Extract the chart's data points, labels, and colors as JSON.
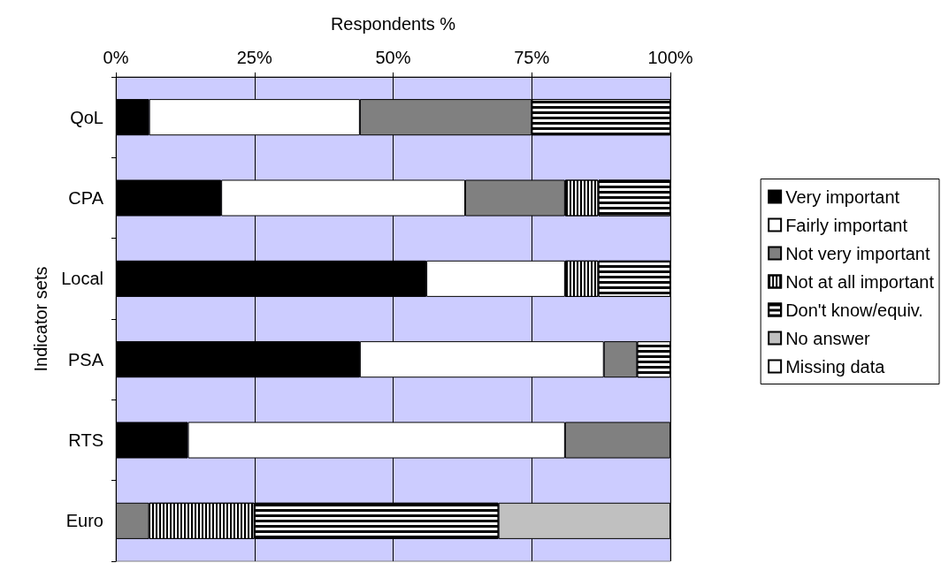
{
  "chart_data": {
    "type": "bar",
    "orientation": "horizontal",
    "stacked": true,
    "xlabel": "Respondents %",
    "ylabel": "Indicator sets",
    "categories": [
      "QoL",
      "CPA",
      "Local",
      "PSA",
      "RTS",
      "Euro"
    ],
    "xlim": [
      0,
      100
    ],
    "xticks": [
      {
        "value": 0,
        "label": "0%"
      },
      {
        "value": 25,
        "label": "25%"
      },
      {
        "value": 50,
        "label": "50%"
      },
      {
        "value": 75,
        "label": "75%"
      },
      {
        "value": 100,
        "label": "100%"
      }
    ],
    "grid": "x",
    "legend": "right",
    "series": [
      {
        "name": "Very important",
        "color": "#000000",
        "values": [
          6,
          19,
          56,
          44,
          13,
          null
        ]
      },
      {
        "name": "Fairly important",
        "color": "#ffffff",
        "values": [
          38,
          44,
          25,
          44,
          68,
          null
        ]
      },
      {
        "name": "Not very important",
        "color": "#808080",
        "values": [
          31,
          18,
          null,
          6,
          19,
          6
        ]
      },
      {
        "name": "Not at all important",
        "color": "#ffffff",
        "values": [
          null,
          6,
          6,
          null,
          null,
          19
        ]
      },
      {
        "name": "Don't know/equiv.",
        "color": "#ffffff",
        "values": [
          25,
          13,
          13,
          6,
          null,
          44
        ]
      },
      {
        "name": "No answer",
        "color": "#c0c0c0",
        "values": [
          null,
          null,
          null,
          null,
          null,
          31
        ]
      },
      {
        "name": "Missing data",
        "color": "#ffffff",
        "values": [
          null,
          null,
          null,
          null,
          null,
          null
        ]
      }
    ]
  }
}
